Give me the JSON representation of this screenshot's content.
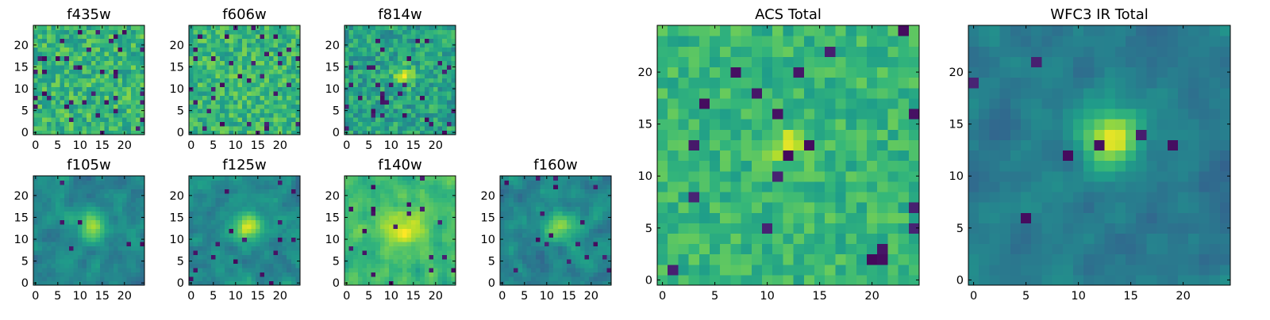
{
  "figure_caption": "",
  "chart_data": [
    {
      "type": "heatmap",
      "id": "f435w",
      "title": "f435w",
      "xlabel": "",
      "ylabel": "",
      "xlim": [
        -0.5,
        24.5
      ],
      "ylim": [
        -0.5,
        24.5
      ],
      "x_ticks": [
        0,
        5,
        10,
        15,
        20
      ],
      "y_ticks": [
        0,
        5,
        10,
        15,
        20
      ],
      "x_tick_labels": [
        "0",
        "5",
        "10",
        "15",
        "20"
      ],
      "y_tick_labels": [
        "0",
        "5",
        "10",
        "15",
        "20"
      ],
      "grid": false,
      "colormap": "viridis",
      "pattern": {
        "seed": 11,
        "peak": [
          13,
          12
        ],
        "peak_amplitude": 0.0,
        "peak_sigma": 3.0,
        "baseline": 0.66,
        "noise": 0.16,
        "dark_fraction": 0.07,
        "smoothing": 0
      }
    },
    {
      "type": "heatmap",
      "id": "f606w",
      "title": "f606w",
      "xlabel": "",
      "ylabel": "",
      "xlim": [
        -0.5,
        24.5
      ],
      "ylim": [
        -0.5,
        24.5
      ],
      "x_ticks": [
        0,
        5,
        10,
        15,
        20
      ],
      "y_ticks": [
        0,
        5,
        10,
        15,
        20
      ],
      "x_tick_labels": [
        "0",
        "5",
        "10",
        "15",
        "20"
      ],
      "y_tick_labels": [
        "0",
        "5",
        "10",
        "15",
        "20"
      ],
      "grid": false,
      "colormap": "viridis",
      "pattern": {
        "seed": 23,
        "peak": [
          13,
          12
        ],
        "peak_amplitude": 0.05,
        "peak_sigma": 2.5,
        "baseline": 0.66,
        "noise": 0.15,
        "dark_fraction": 0.05,
        "smoothing": 0
      }
    },
    {
      "type": "heatmap",
      "id": "f814w",
      "title": "f814w",
      "xlabel": "",
      "ylabel": "",
      "xlim": [
        -0.5,
        24.5
      ],
      "ylim": [
        -0.5,
        24.5
      ],
      "x_ticks": [
        0,
        5,
        10,
        15,
        20
      ],
      "y_ticks": [
        0,
        5,
        10,
        15,
        20
      ],
      "x_tick_labels": [
        "0",
        "5",
        "10",
        "15",
        "20"
      ],
      "y_tick_labels": [
        "0",
        "5",
        "10",
        "15",
        "20"
      ],
      "grid": false,
      "colormap": "viridis",
      "pattern": {
        "seed": 37,
        "peak": [
          13,
          13
        ],
        "peak_amplitude": 0.3,
        "peak_sigma": 1.6,
        "baseline": 0.58,
        "noise": 0.15,
        "dark_fraction": 0.05,
        "smoothing": 0
      }
    },
    {
      "type": "heatmap",
      "id": "f105w",
      "title": "f105w",
      "xlabel": "",
      "ylabel": "",
      "xlim": [
        -0.5,
        24.5
      ],
      "ylim": [
        -0.5,
        24.5
      ],
      "x_ticks": [
        0,
        5,
        10,
        15,
        20
      ],
      "y_ticks": [
        0,
        5,
        10,
        15,
        20
      ],
      "x_tick_labels": [
        "0",
        "5",
        "10",
        "15",
        "20"
      ],
      "y_tick_labels": [
        "0",
        "5",
        "10",
        "15",
        "20"
      ],
      "grid": false,
      "colormap": "viridis",
      "pattern": {
        "seed": 41,
        "peak": [
          13,
          13
        ],
        "peak_amplitude": 0.42,
        "peak_sigma": 2.3,
        "baseline": 0.46,
        "noise": 0.14,
        "dark_fraction": 0.02,
        "smoothing": 1
      }
    },
    {
      "type": "heatmap",
      "id": "f125w",
      "title": "f125w",
      "xlabel": "",
      "ylabel": "",
      "xlim": [
        -0.5,
        24.5
      ],
      "ylim": [
        -0.5,
        24.5
      ],
      "x_ticks": [
        0,
        5,
        10,
        15,
        20
      ],
      "y_ticks": [
        0,
        5,
        10,
        15,
        20
      ],
      "x_tick_labels": [
        "0",
        "5",
        "10",
        "15",
        "20"
      ],
      "y_tick_labels": [
        "0",
        "5",
        "10",
        "15",
        "20"
      ],
      "grid": false,
      "colormap": "viridis",
      "pattern": {
        "seed": 53,
        "peak": [
          13,
          13
        ],
        "peak_amplitude": 0.42,
        "peak_sigma": 2.3,
        "baseline": 0.48,
        "noise": 0.14,
        "dark_fraction": 0.02,
        "smoothing": 1
      }
    },
    {
      "type": "heatmap",
      "id": "f140w",
      "title": "f140w",
      "xlabel": "",
      "ylabel": "",
      "xlim": [
        -0.5,
        24.5
      ],
      "ylim": [
        -0.5,
        24.5
      ],
      "x_ticks": [
        0,
        5,
        10,
        15,
        20
      ],
      "y_ticks": [
        0,
        5,
        10,
        15,
        20
      ],
      "x_tick_labels": [
        "0",
        "5",
        "10",
        "15",
        "20"
      ],
      "y_tick_labels": [
        "0",
        "5",
        "10",
        "15",
        "20"
      ],
      "grid": false,
      "colormap": "viridis",
      "pattern": {
        "seed": 67,
        "peak": [
          13,
          13
        ],
        "peak_amplitude": 0.25,
        "peak_sigma": 3.2,
        "baseline": 0.68,
        "noise": 0.14,
        "dark_fraction": 0.02,
        "smoothing": 1
      }
    },
    {
      "type": "heatmap",
      "id": "f160w",
      "title": "f160w",
      "xlabel": "",
      "ylabel": "",
      "xlim": [
        -0.5,
        24.5
      ],
      "ylim": [
        -0.5,
        24.5
      ],
      "x_ticks": [
        0,
        5,
        10,
        15,
        20
      ],
      "y_ticks": [
        0,
        5,
        10,
        15,
        20
      ],
      "x_tick_labels": [
        "0",
        "5",
        "10",
        "15",
        "20"
      ],
      "y_tick_labels": [
        "0",
        "5",
        "10",
        "15",
        "20"
      ],
      "grid": false,
      "colormap": "viridis",
      "pattern": {
        "seed": 79,
        "peak": [
          13,
          13
        ],
        "peak_amplitude": 0.42,
        "peak_sigma": 2.3,
        "baseline": 0.46,
        "noise": 0.15,
        "dark_fraction": 0.02,
        "smoothing": 1
      }
    },
    {
      "type": "heatmap",
      "id": "acs-total",
      "title": "ACS Total",
      "xlabel": "",
      "ylabel": "",
      "xlim": [
        -0.5,
        24.5
      ],
      "ylim": [
        -0.5,
        24.5
      ],
      "x_ticks": [
        0,
        5,
        10,
        15,
        20
      ],
      "y_ticks": [
        0,
        5,
        10,
        15,
        20
      ],
      "x_tick_labels": [
        "0",
        "5",
        "10",
        "15",
        "20"
      ],
      "y_tick_labels": [
        "0",
        "5",
        "10",
        "15",
        "20"
      ],
      "grid": false,
      "colormap": "viridis",
      "pattern": {
        "seed": 97,
        "peak": [
          12,
          13
        ],
        "peak_amplitude": 0.25,
        "peak_sigma": 1.3,
        "baseline": 0.66,
        "noise": 0.11,
        "dark_fraction": 0.03,
        "smoothing": 0
      }
    },
    {
      "type": "heatmap",
      "id": "wfc3-ir-total",
      "title": "WFC3 IR Total",
      "xlabel": "",
      "ylabel": "",
      "xlim": [
        -0.5,
        24.5
      ],
      "ylim": [
        -0.5,
        24.5
      ],
      "x_ticks": [
        0,
        5,
        10,
        15,
        20
      ],
      "y_ticks": [
        0,
        5,
        10,
        15,
        20
      ],
      "x_tick_labels": [
        "0",
        "5",
        "10",
        "15",
        "20"
      ],
      "y_tick_labels": [
        "0",
        "5",
        "10",
        "15",
        "20"
      ],
      "grid": false,
      "colormap": "viridis",
      "pattern": {
        "seed": 113,
        "peak": [
          13,
          13.5
        ],
        "peak_amplitude": 0.55,
        "peak_sigma": 2.0,
        "baseline": 0.42,
        "noise": 0.11,
        "dark_fraction": 0.015,
        "smoothing": 1
      }
    }
  ]
}
